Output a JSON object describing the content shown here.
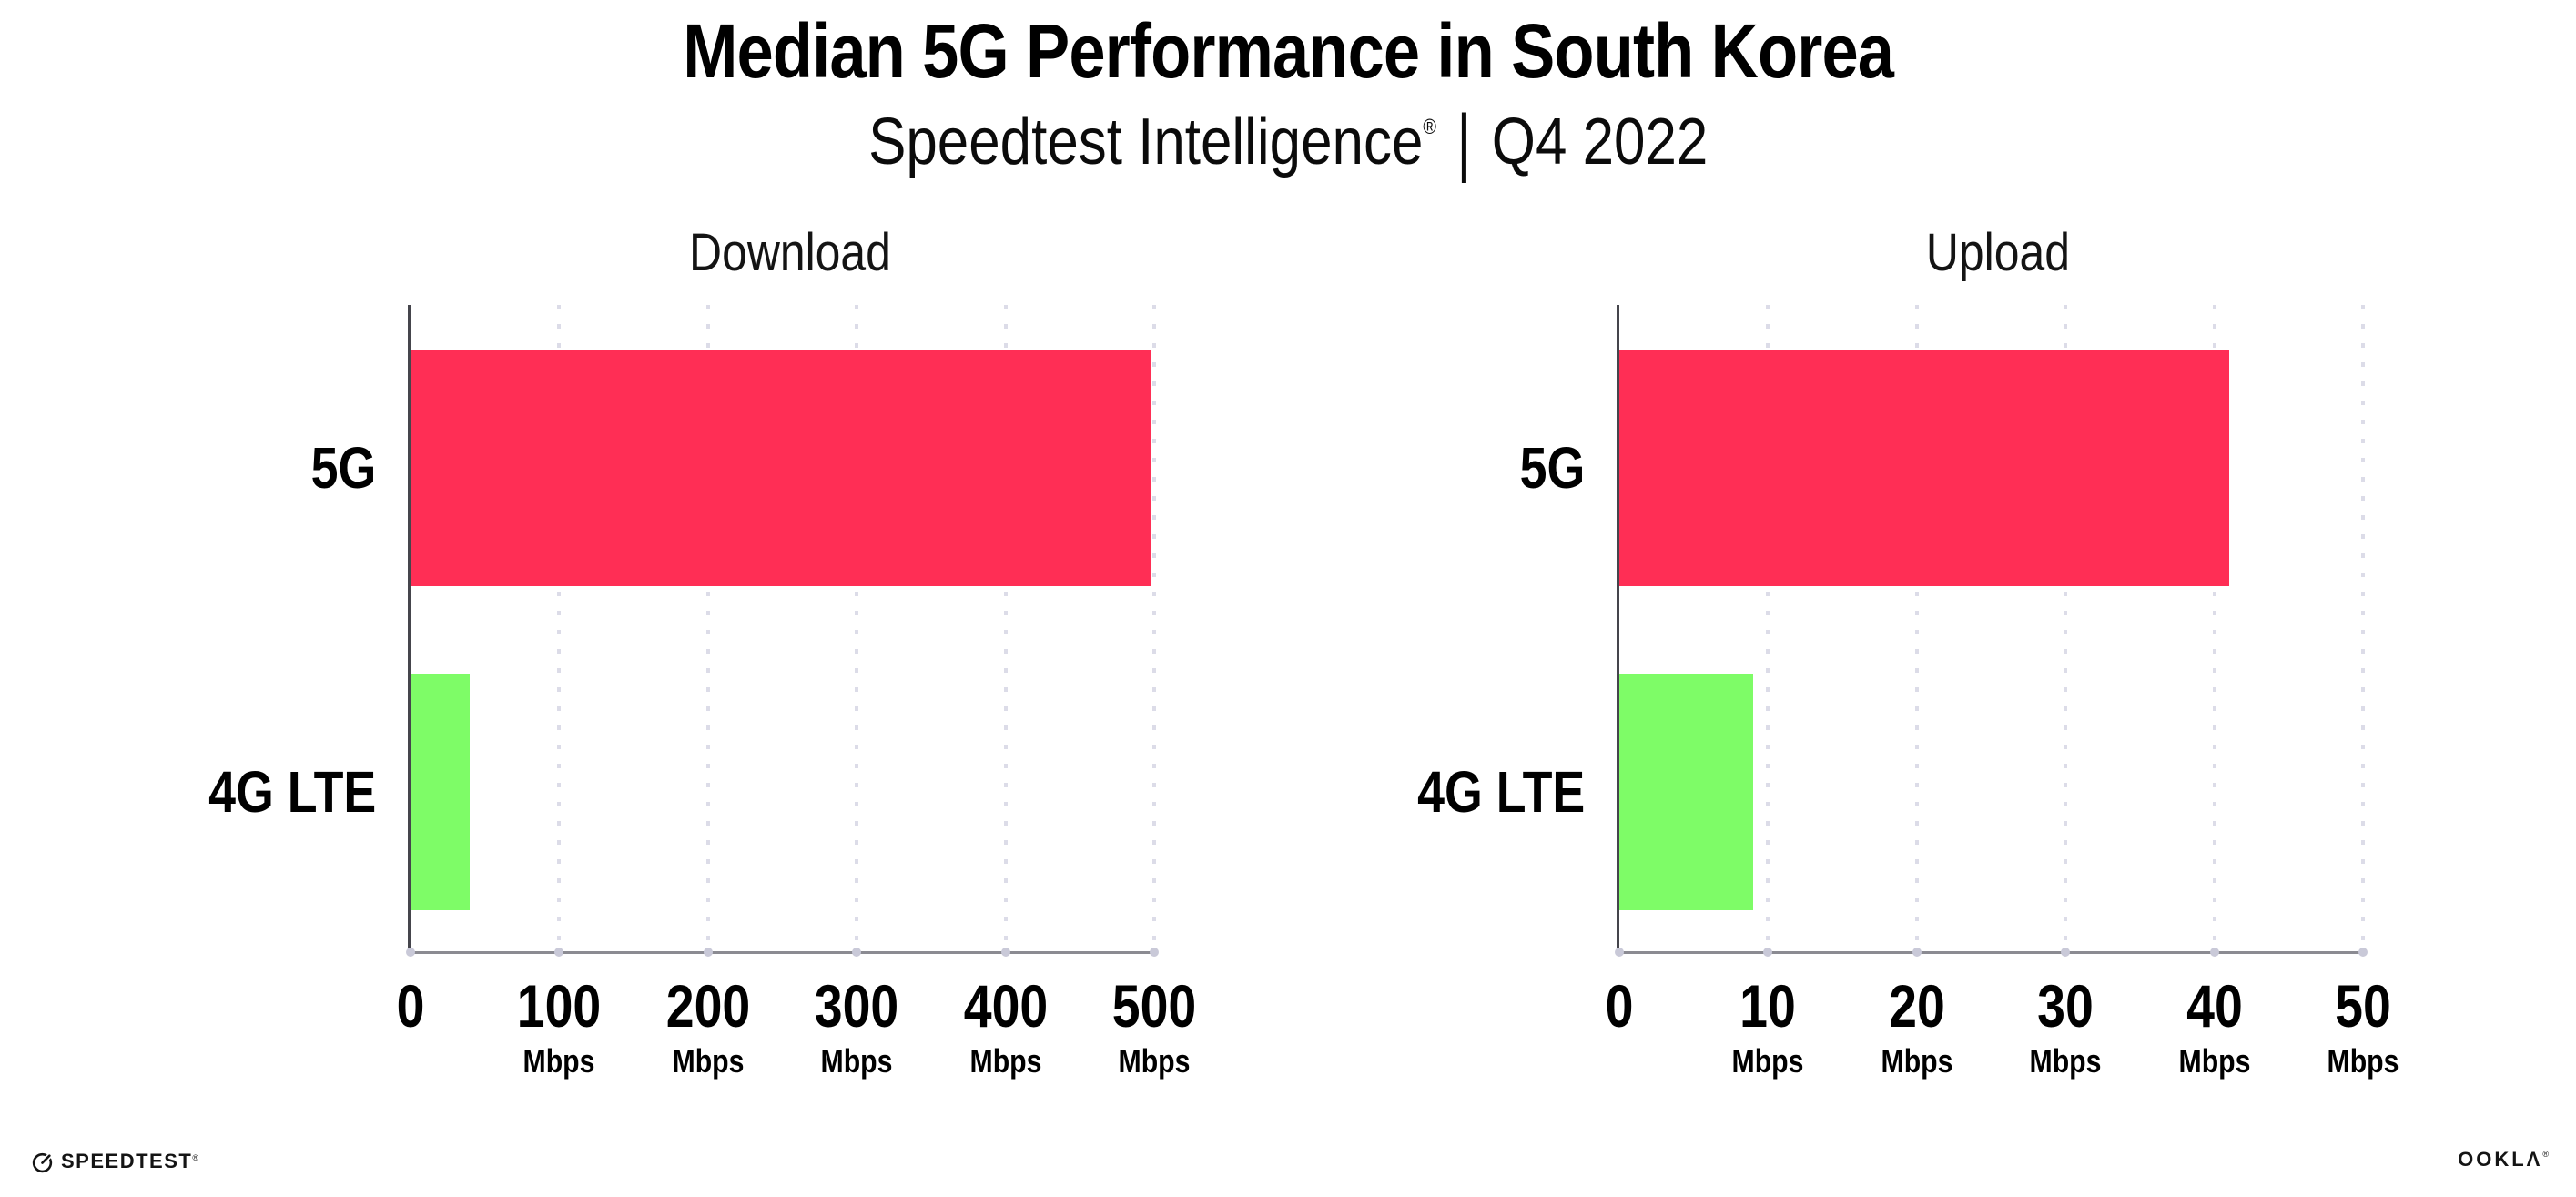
{
  "header": {
    "title": "Median 5G Performance in South Korea",
    "subtitle": {
      "brand": "Speedtest Intelligence",
      "registered_mark": "®",
      "divider": "|",
      "period": "Q4 2022"
    }
  },
  "chart_data": [
    {
      "type": "bar",
      "orientation": "horizontal",
      "title": "Download",
      "categories": [
        "5G",
        "4G LTE"
      ],
      "values": [
        498,
        40
      ],
      "unit": "Mbps",
      "xlim": [
        0,
        500
      ],
      "xticks": [
        0,
        100,
        200,
        300,
        400,
        500
      ],
      "tick_unit": "Mbps",
      "bar_colors": [
        "#ff2e55",
        "#7efc67"
      ],
      "grid": "vertical-dotted",
      "legend": null,
      "xlabel": "",
      "ylabel": ""
    },
    {
      "type": "bar",
      "orientation": "horizontal",
      "title": "Upload",
      "categories": [
        "5G",
        "4G LTE"
      ],
      "values": [
        41,
        9
      ],
      "unit": "Mbps",
      "xlim": [
        0,
        50
      ],
      "xticks": [
        0,
        10,
        20,
        30,
        40,
        50
      ],
      "tick_unit": "Mbps",
      "bar_colors": [
        "#ff2e55",
        "#7efc67"
      ],
      "grid": "vertical-dotted",
      "legend": null,
      "xlabel": "",
      "ylabel": ""
    }
  ],
  "footer": {
    "speedtest_text": "SPEEDTEST",
    "speedtest_mark": "®",
    "ookla_text": "OOKLA",
    "ookla_mark": "®"
  },
  "colors": {
    "bar_5g": "#ff2e55",
    "bar_4g_lte": "#7efc67",
    "axis_x": "#8b8b92",
    "axis_y": "#45454c",
    "grid_dots": "#dcdce8",
    "tick_dots": "#c9c9d8",
    "text": "#000000"
  }
}
